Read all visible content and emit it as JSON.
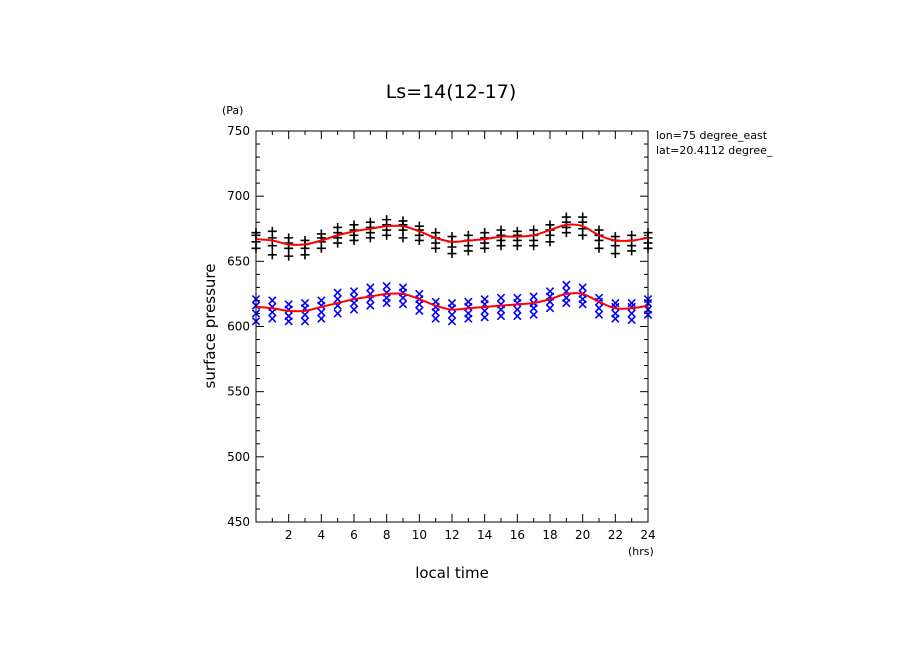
{
  "chart_data": {
    "type": "scatter",
    "title": "Ls=14(12-17)",
    "xlabel": "local time",
    "ylabel": "surface pressure",
    "x_unit": "(hrs)",
    "y_unit": "(Pa)",
    "xlim": [
      0,
      24
    ],
    "ylim": [
      450,
      750
    ],
    "x_ticks": [
      2,
      4,
      6,
      8,
      10,
      12,
      14,
      16,
      18,
      20,
      22,
      24
    ],
    "y_ticks": [
      450,
      500,
      550,
      600,
      650,
      700,
      750
    ],
    "annotations": [
      "lon=75 degree_east",
      "lat=20.4112 degree_"
    ],
    "colors": {
      "upper_markers": "#000000",
      "lower_markers": "#0000ff",
      "fit_line": "#ff0000"
    },
    "series": [
      {
        "marker": "plus",
        "color": "#000000",
        "x": [
          0,
          1,
          2,
          3,
          4,
          5,
          6,
          7,
          8,
          9,
          10,
          11,
          12,
          13,
          14,
          15,
          16,
          17,
          18,
          19,
          20,
          21,
          22,
          23,
          24
        ],
        "values": [
          [
            660,
            665,
            670,
            672
          ],
          [
            655,
            662,
            668,
            673
          ],
          [
            654,
            660,
            664,
            668
          ],
          [
            655,
            660,
            663,
            666
          ],
          [
            660,
            665,
            668,
            671
          ],
          [
            664,
            668,
            672,
            676
          ],
          [
            666,
            670,
            674,
            678
          ],
          [
            668,
            672,
            676,
            680
          ],
          [
            670,
            674,
            678,
            682
          ],
          [
            668,
            674,
            678,
            681
          ],
          [
            666,
            670,
            674,
            677
          ],
          [
            660,
            664,
            668,
            672
          ],
          [
            656,
            661,
            665,
            669
          ],
          [
            658,
            662,
            666,
            670
          ],
          [
            660,
            664,
            668,
            672
          ],
          [
            662,
            666,
            670,
            674
          ],
          [
            662,
            666,
            670,
            673
          ],
          [
            662,
            666,
            670,
            674
          ],
          [
            665,
            670,
            674,
            678
          ],
          [
            672,
            676,
            680,
            684
          ],
          [
            670,
            675,
            680,
            684
          ],
          [
            660,
            666,
            670,
            674
          ],
          [
            656,
            662,
            666,
            669
          ],
          [
            658,
            662,
            666,
            670
          ],
          [
            660,
            664,
            668,
            672
          ]
        ]
      },
      {
        "marker": "cross",
        "color": "#0000ff",
        "x": [
          0,
          1,
          2,
          3,
          4,
          5,
          6,
          7,
          8,
          9,
          10,
          11,
          12,
          13,
          14,
          15,
          16,
          17,
          18,
          19,
          20,
          21,
          22,
          23,
          24
        ],
        "values": [
          [
            604,
            610,
            616,
            621
          ],
          [
            606,
            611,
            615,
            620
          ],
          [
            604,
            608,
            613,
            617
          ],
          [
            604,
            609,
            614,
            618
          ],
          [
            606,
            611,
            616,
            620
          ],
          [
            610,
            616,
            621,
            626
          ],
          [
            613,
            618,
            622,
            627
          ],
          [
            616,
            621,
            625,
            630
          ],
          [
            618,
            622,
            626,
            631
          ],
          [
            617,
            622,
            626,
            630
          ],
          [
            612,
            617,
            621,
            625
          ],
          [
            606,
            611,
            615,
            619
          ],
          [
            604,
            609,
            614,
            618
          ],
          [
            606,
            610,
            615,
            619
          ],
          [
            607,
            612,
            617,
            621
          ],
          [
            608,
            613,
            617,
            622
          ],
          [
            608,
            613,
            618,
            622
          ],
          [
            609,
            614,
            618,
            623
          ],
          [
            614,
            619,
            623,
            627
          ],
          [
            618,
            622,
            627,
            632
          ],
          [
            617,
            621,
            625,
            630
          ],
          [
            609,
            614,
            619,
            622
          ],
          [
            606,
            610,
            615,
            618
          ],
          [
            605,
            610,
            615,
            618
          ],
          [
            609,
            613,
            618,
            621
          ]
        ]
      }
    ],
    "fit_lines": [
      {
        "color": "#ff0000",
        "x": [
          0,
          1,
          2,
          3,
          4,
          5,
          6,
          7,
          8,
          9,
          10,
          11,
          12,
          13,
          14,
          15,
          16,
          17,
          18,
          19,
          20,
          21,
          22,
          23,
          24
        ],
        "values": [
          667,
          666,
          663,
          663,
          666,
          670,
          673,
          675,
          677,
          677,
          673,
          668,
          665,
          666,
          667,
          669,
          669,
          670,
          674,
          678,
          677,
          670,
          666,
          666,
          668
        ]
      },
      {
        "color": "#ff0000",
        "x": [
          0,
          1,
          2,
          3,
          4,
          5,
          6,
          7,
          8,
          9,
          10,
          11,
          12,
          13,
          14,
          15,
          16,
          17,
          18,
          19,
          20,
          21,
          22,
          23,
          24
        ],
        "values": [
          615,
          614,
          612,
          612,
          615,
          618,
          621,
          623,
          625,
          625,
          621,
          616,
          613,
          614,
          615,
          616,
          617,
          618,
          621,
          625,
          625,
          619,
          614,
          614,
          616
        ]
      }
    ]
  }
}
